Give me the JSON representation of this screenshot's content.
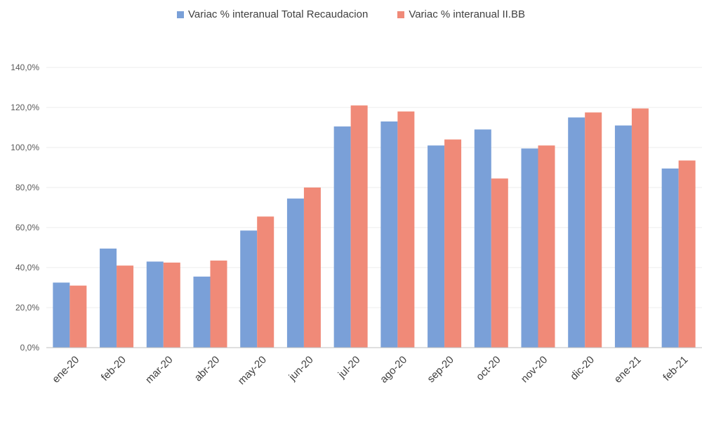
{
  "chart_data": {
    "type": "bar",
    "categories": [
      "ene-20",
      "feb-20",
      "mar-20",
      "abr-20",
      "may-20",
      "jun-20",
      "jul-20",
      "ago-20",
      "sep-20",
      "oct-20",
      "nov-20",
      "dic-20",
      "ene-21",
      "feb-21"
    ],
    "series": [
      {
        "name": "Variac % interanual Total Recaudacion",
        "color": "#7aa0d8",
        "values": [
          32.5,
          49.5,
          43.0,
          35.5,
          58.5,
          74.5,
          110.5,
          113.0,
          101.0,
          109.0,
          99.5,
          115.0,
          111.0,
          89.5
        ]
      },
      {
        "name": "Variac % interanual II.BB",
        "color": "#f08a78",
        "values": [
          31.0,
          41.0,
          42.5,
          43.5,
          65.5,
          80.0,
          121.0,
          118.0,
          104.0,
          84.5,
          101.0,
          117.5,
          119.5,
          93.5
        ]
      }
    ],
    "y_ticks": [
      "0,0%",
      "20,0%",
      "40,0%",
      "60,0%",
      "80,0%",
      "100,0%",
      "120,0%",
      "140,0%"
    ],
    "ylim": [
      0,
      140
    ],
    "grid": true,
    "legend_position": "top-center"
  }
}
